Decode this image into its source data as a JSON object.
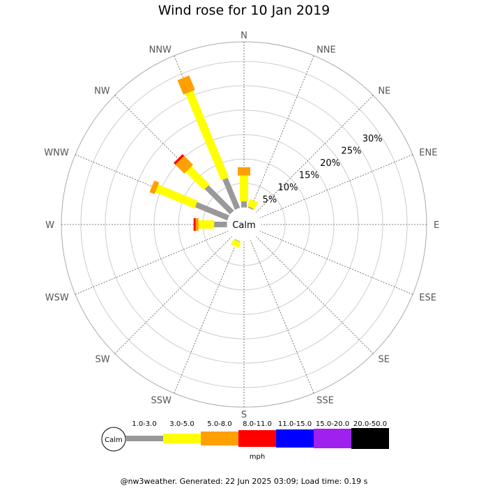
{
  "title": "Wind rose for 10 Jan 2019",
  "footer": "@nw3weather. Generated: 22 Jun 2025 03:09; Load time: 0.19 s",
  "chart_data": {
    "type": "wind-rose",
    "title": "Wind rose for 10 Jan 2019",
    "calm_label": "Calm",
    "directions": [
      "N",
      "NNE",
      "NE",
      "ENE",
      "E",
      "ESE",
      "SE",
      "SSE",
      "S",
      "SSW",
      "SW",
      "WSW",
      "W",
      "WNW",
      "NW",
      "NNW"
    ],
    "radial_ticks": [
      5,
      10,
      15,
      20,
      25,
      30
    ],
    "radial_tick_labels": [
      "5%",
      "10%",
      "15%",
      "20%",
      "25%",
      "30%"
    ],
    "rmax": 34,
    "units": "mph",
    "speed_bins": [
      {
        "label": "1.0-3.0",
        "color": "#999999"
      },
      {
        "label": "3.0-5.0",
        "color": "#ffff00"
      },
      {
        "label": "5.0-8.0",
        "color": "#ff9f00"
      },
      {
        "label": "8.0-11.0",
        "color": "#ff0000"
      },
      {
        "label": "11.0-15.0",
        "color": "#0000ff"
      },
      {
        "label": "15.0-20.0",
        "color": "#a020f0"
      },
      {
        "label": "20.0-50.0",
        "color": "#000000"
      }
    ],
    "series": [
      {
        "dir": "N",
        "values": [
          1.3,
          5.3,
          1.7,
          0,
          0,
          0,
          0
        ]
      },
      {
        "dir": "NNE",
        "values": [
          0.3,
          1.6,
          0,
          0,
          0,
          0,
          0
        ]
      },
      {
        "dir": "NE",
        "values": [
          0,
          0,
          0,
          0,
          0,
          0,
          0
        ]
      },
      {
        "dir": "ENE",
        "values": [
          0,
          0,
          0,
          0,
          0,
          0,
          0
        ]
      },
      {
        "dir": "E",
        "values": [
          0,
          0,
          0,
          0,
          0,
          0,
          0
        ]
      },
      {
        "dir": "ESE",
        "values": [
          0,
          0,
          0,
          0,
          0,
          0,
          0
        ]
      },
      {
        "dir": "SE",
        "values": [
          0,
          0,
          0,
          0,
          0,
          0,
          0
        ]
      },
      {
        "dir": "SSE",
        "values": [
          0,
          0,
          0,
          0,
          0,
          0,
          0
        ]
      },
      {
        "dir": "S",
        "values": [
          0,
          0,
          0,
          0,
          0,
          0,
          0
        ]
      },
      {
        "dir": "SSW",
        "values": [
          0.2,
          1.2,
          0,
          0,
          0,
          0,
          0
        ]
      },
      {
        "dir": "SW",
        "values": [
          0,
          0,
          0,
          0,
          0,
          0,
          0
        ]
      },
      {
        "dir": "WSW",
        "values": [
          0,
          0,
          0,
          0,
          0,
          0,
          0
        ]
      },
      {
        "dir": "W",
        "values": [
          2.7,
          3.2,
          0.6,
          0.4,
          0,
          0,
          0
        ]
      },
      {
        "dir": "WNW",
        "values": [
          7.2,
          8.7,
          1.1,
          0,
          0,
          0,
          0
        ]
      },
      {
        "dir": "NW",
        "values": [
          7.4,
          5.2,
          2.6,
          0.5,
          0,
          0,
          0
        ]
      },
      {
        "dir": "NNW",
        "values": [
          6.7,
          19.2,
          3.2,
          0,
          0,
          0,
          0
        ]
      }
    ]
  }
}
